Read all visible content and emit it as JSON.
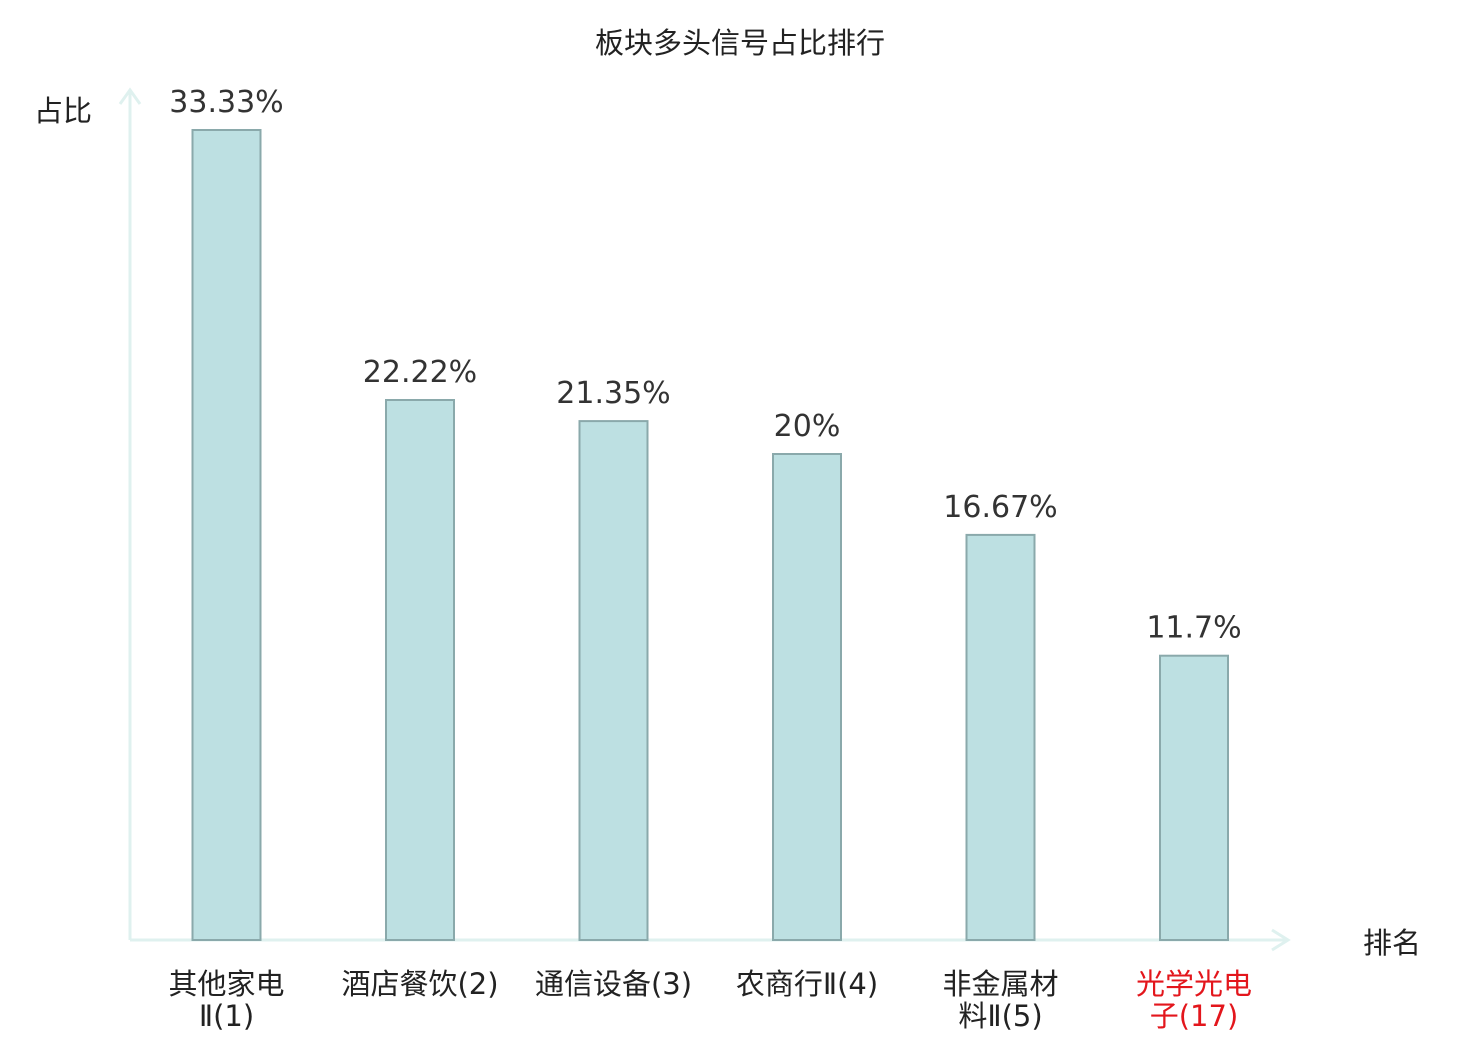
{
  "chart_data": {
    "type": "bar",
    "title": "板块多头信号占比排行",
    "ylabel": "占比",
    "xlabel": "排名",
    "ylim": [
      0,
      34.5
    ],
    "grid": false,
    "categories": [
      {
        "line1": "其他家电",
        "line2": "Ⅱ(1)",
        "highlight": false
      },
      {
        "line1": "酒店餐饮(2)",
        "line2": "",
        "highlight": false
      },
      {
        "line1": "通信设备(3)",
        "line2": "",
        "highlight": false
      },
      {
        "line1": "农商行Ⅱ(4)",
        "line2": "",
        "highlight": false
      },
      {
        "line1": "非金属材",
        "line2": "料Ⅱ(5)",
        "highlight": false
      },
      {
        "line1": "光学光电",
        "line2": "子(17)",
        "highlight": true
      }
    ],
    "values": [
      33.33,
      22.22,
      21.35,
      20,
      16.67,
      11.7
    ],
    "value_labels": [
      "33.33%",
      "22.22%",
      "21.35%",
      "20%",
      "16.67%",
      "11.7%"
    ],
    "colors": {
      "bar_fill": "#bde0e2",
      "bar_stroke": "#8aa9ab",
      "axis": "#dff1ef",
      "label_text": "#222222",
      "highlight_text": "#e3161c"
    }
  }
}
